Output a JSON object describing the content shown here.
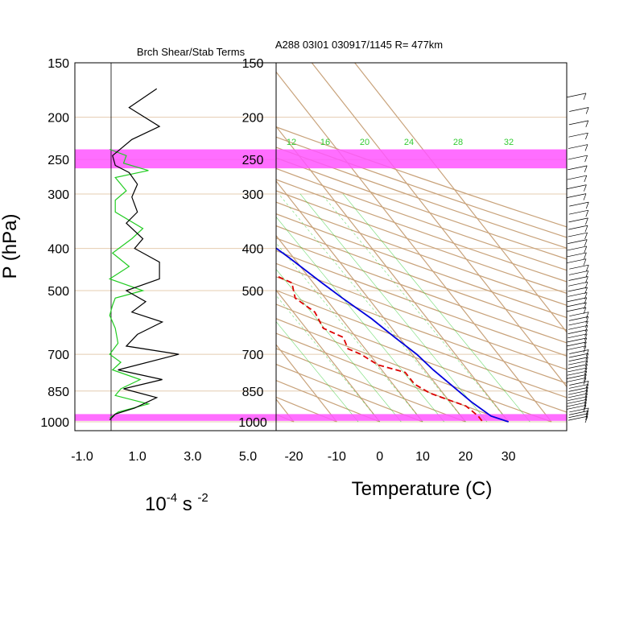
{
  "header": {
    "left_title": "Brch Shear/Stab Terms",
    "right_title": "A288 03I01 030917/1145 R= 477km"
  },
  "axes": {
    "ylabel": "P (hPa)",
    "left_xlabel_base": "10",
    "left_xlabel_exp1": "-4",
    "left_xlabel_mid": " s ",
    "left_xlabel_exp2": "-2",
    "right_xlabel": "Temperature (C)",
    "pressure_ticks": [
      150,
      200,
      250,
      300,
      400,
      500,
      700,
      850,
      1000
    ],
    "left_x_ticks": [
      "-1.0",
      "1.0",
      "3.0",
      "5.0"
    ],
    "right_x_ticks": [
      "-20",
      "-10",
      "0",
      "10",
      "20",
      "30"
    ]
  },
  "colors": {
    "temperature": "#0000dd",
    "dewpoint": "#dd0000",
    "shear": "#000000",
    "stability": "#22cc22",
    "highlight": "#ff55ff",
    "skewt_lines": "#c8a27a",
    "mixing_ratio": "#33cc33"
  },
  "chart_data": [
    {
      "type": "line",
      "title": "Brch Shear/Stab Terms",
      "xlabel": "10^-4 s^-2",
      "ylabel": "P (hPa)",
      "xlim": [
        -1.0,
        5.0
      ],
      "ylim": [
        1000,
        150
      ],
      "y_scale": "log-pressure",
      "grid": false,
      "series": [
        {
          "key": "shear",
          "points": [
            [
              0.0,
              990
            ],
            [
              0.2,
              960
            ],
            [
              0.9,
              930
            ],
            [
              1.7,
              880
            ],
            [
              0.5,
              840
            ],
            [
              1.9,
              800
            ],
            [
              0.3,
              760
            ],
            [
              2.5,
              700
            ],
            [
              0.6,
              670
            ],
            [
              1.0,
              630
            ],
            [
              1.9,
              590
            ],
            [
              0.8,
              560
            ],
            [
              1.3,
              530
            ],
            [
              0.6,
              500
            ],
            [
              1.8,
              470
            ],
            [
              1.8,
              430
            ],
            [
              0.9,
              400
            ],
            [
              1.2,
              380
            ],
            [
              0.6,
              350
            ],
            [
              1.0,
              330
            ],
            [
              0.8,
              305
            ],
            [
              1.0,
              285
            ],
            [
              0.7,
              268
            ],
            [
              0.2,
              258
            ],
            [
              0.1,
              245
            ],
            [
              0.8,
              225
            ],
            [
              1.8,
              210
            ],
            [
              0.7,
              190
            ],
            [
              1.7,
              172
            ]
          ]
        },
        {
          "key": "stability",
          "points": [
            [
              0.0,
              980
            ],
            [
              0.3,
              950
            ],
            [
              1.4,
              910
            ],
            [
              0.2,
              870
            ],
            [
              0.4,
              840
            ],
            [
              1.1,
              800
            ],
            [
              0.1,
              760
            ],
            [
              0.4,
              730
            ],
            [
              0.0,
              700
            ],
            [
              0.3,
              660
            ],
            [
              0.2,
              610
            ],
            [
              0.0,
              570
            ],
            [
              0.1,
              540
            ],
            [
              0.2,
              520
            ],
            [
              1.2,
              500
            ],
            [
              0.0,
              470
            ],
            [
              0.7,
              440
            ],
            [
              0.1,
              410
            ],
            [
              0.8,
              380
            ],
            [
              1.2,
              360
            ],
            [
              0.2,
              330
            ],
            [
              0.2,
              310
            ],
            [
              0.6,
              295
            ],
            [
              0.2,
              275
            ],
            [
              1.4,
              265
            ],
            [
              0.5,
              255
            ],
            [
              0.6,
              245
            ],
            [
              0.0,
              237
            ]
          ]
        }
      ]
    },
    {
      "type": "line",
      "title": "A288 03I01 030917/1145 R= 477km",
      "xlabel": "Temperature (C)",
      "ylabel": "P (hPa)",
      "xlim": [
        -25,
        40
      ],
      "ylim": [
        1000,
        150
      ],
      "y_scale": "log-pressure",
      "highlight_bands_hpa": [
        [
          237,
          262
        ],
        [
          960,
          995
        ]
      ],
      "mixing_ratio_labels": [
        "12",
        "16",
        "20",
        "24",
        "28",
        "32"
      ],
      "series": [
        {
          "key": "temperature",
          "points": [
            [
              30,
              1000
            ],
            [
              27,
              970
            ],
            [
              25,
              900
            ],
            [
              24,
              850
            ],
            [
              22,
              760
            ],
            [
              21,
              700
            ],
            [
              19,
              640
            ],
            [
              17,
              580
            ],
            [
              14,
              520
            ],
            [
              12,
              480
            ],
            [
              9,
              420
            ],
            [
              5,
              360
            ],
            [
              1,
              310
            ],
            [
              -3,
              270
            ],
            [
              -6,
              250
            ],
            [
              -9,
              220
            ],
            [
              -11,
              200
            ],
            [
              -13,
              180
            ],
            [
              -15,
              165
            ]
          ]
        },
        {
          "key": "dewpoint",
          "points": [
            [
              24,
              995
            ],
            [
              24,
              970
            ],
            [
              23,
              920
            ],
            [
              20,
              890
            ],
            [
              17,
              860
            ],
            [
              15,
              820
            ],
            [
              15,
              770
            ],
            [
              10,
              740
            ],
            [
              8,
              700
            ],
            [
              6,
              680
            ],
            [
              7,
              640
            ],
            [
              4,
              610
            ],
            [
              5,
              560
            ],
            [
              3,
              520
            ],
            [
              5,
              480
            ],
            [
              1,
              450
            ],
            [
              -2,
              410
            ],
            [
              0,
              370
            ],
            [
              -5,
              360
            ],
            [
              -10,
              345
            ],
            [
              -19,
              330
            ],
            [
              -20,
              300
            ],
            [
              -18,
              290
            ],
            [
              -19,
              272
            ],
            [
              -22,
              255
            ],
            [
              -25,
              230
            ],
            [
              -31,
              205
            ],
            [
              -34,
              190
            ]
          ]
        }
      ]
    }
  ]
}
